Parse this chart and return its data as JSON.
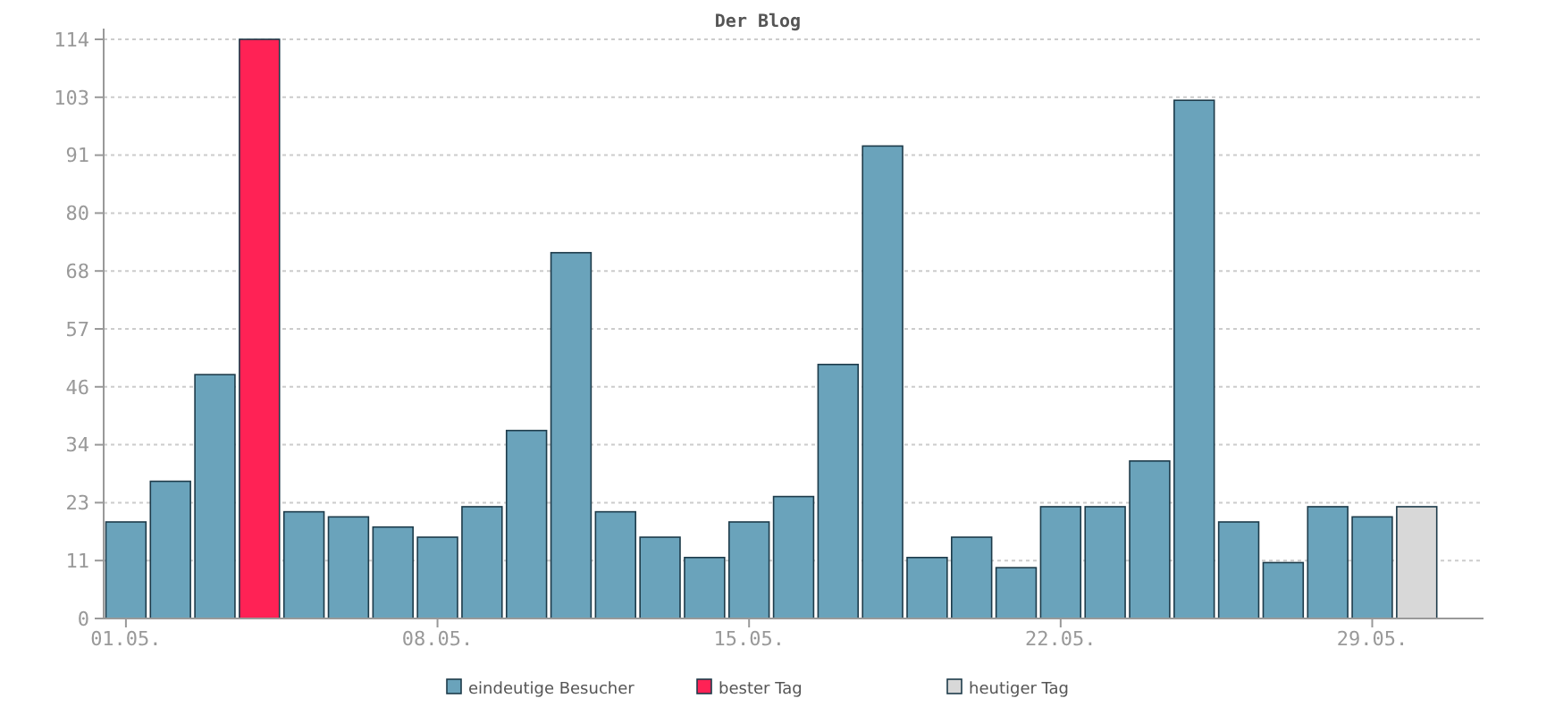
{
  "chart_data": {
    "type": "bar",
    "title": "Der Blog",
    "categories": [
      "01.05.",
      null,
      null,
      null,
      null,
      null,
      null,
      "08.05.",
      null,
      null,
      null,
      null,
      null,
      null,
      "15.05.",
      null,
      null,
      null,
      null,
      null,
      null,
      "22.05.",
      null,
      null,
      null,
      null,
      null,
      null,
      "29.05.",
      null
    ],
    "series": [
      {
        "name": "eindeutige Besucher",
        "color": "#6aa3bb",
        "values": [
          19,
          27,
          48,
          null,
          21,
          20,
          18,
          16,
          22,
          37,
          72,
          21,
          16,
          12,
          19,
          24,
          50,
          93,
          12,
          16,
          10,
          22,
          22,
          31,
          102,
          19,
          11,
          22,
          20,
          null
        ]
      },
      {
        "name": "bester Tag",
        "color": "#ff2255",
        "values": [
          null,
          null,
          null,
          114,
          null,
          null,
          null,
          null,
          null,
          null,
          null,
          null,
          null,
          null,
          null,
          null,
          null,
          null,
          null,
          null,
          null,
          null,
          null,
          null,
          null,
          null,
          null,
          null,
          null,
          null
        ]
      },
      {
        "name": "heutiger Tag",
        "color": "#d8d8d8",
        "values": [
          null,
          null,
          null,
          null,
          null,
          null,
          null,
          null,
          null,
          null,
          null,
          null,
          null,
          null,
          null,
          null,
          null,
          null,
          null,
          null,
          null,
          null,
          null,
          null,
          null,
          null,
          null,
          null,
          null,
          22
        ]
      }
    ],
    "ylim": [
      0,
      114
    ],
    "yticks": [
      0,
      {
        "value": 11.4,
        "label": "11"
      },
      {
        "value": 22.8,
        "label": "23"
      },
      {
        "value": 34.2,
        "label": "34"
      },
      {
        "value": 45.6,
        "label": "46"
      },
      57,
      {
        "value": 68.4,
        "label": "68"
      },
      {
        "value": 79.8,
        "label": "80"
      },
      {
        "value": 91.2,
        "label": "91"
      },
      {
        "value": 102.6,
        "label": "103"
      },
      114
    ],
    "grid": "y",
    "legend": "bottom"
  }
}
